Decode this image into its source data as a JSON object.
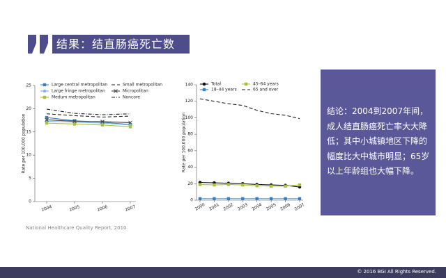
{
  "header": {
    "title": "结果：结直肠癌死亡数"
  },
  "chart_data": [
    {
      "type": "line",
      "categories": [
        "2004",
        "2005",
        "2006",
        "2007"
      ],
      "y_label": "Rate per 100,000 population",
      "ylim": [
        0,
        25
      ],
      "yticks": [
        0,
        5,
        10,
        15,
        20,
        25
      ],
      "series": [
        {
          "name": "Large central metropolitan",
          "color": "#3a7fc1",
          "marker": "square",
          "values": [
            18.1,
            17.4,
            17.1,
            16.6
          ]
        },
        {
          "name": "Large fringe metropolitan",
          "color": "#7fb8e0",
          "marker": "circle",
          "values": [
            17.3,
            17.1,
            16.9,
            16.5
          ]
        },
        {
          "name": "Medum metropolitan",
          "color": "#a8c23a",
          "marker": "square",
          "values": [
            16.9,
            16.7,
            16.5,
            16.1
          ]
        },
        {
          "name": "Small metropolitan",
          "color": "#222222",
          "dash": "dash",
          "values": [
            18.9,
            18.5,
            18.2,
            18.4
          ]
        },
        {
          "name": "Micropolitan",
          "color": "#444444",
          "marker": "cross",
          "values": [
            17.6,
            17.3,
            17.2,
            17.0
          ]
        },
        {
          "name": "Noncore",
          "color": "#222222",
          "dash": "dashdot",
          "values": [
            19.9,
            19.0,
            18.7,
            18.9
          ]
        }
      ]
    },
    {
      "type": "line",
      "categories": [
        "2000",
        "2001",
        "2002",
        "2003",
        "2004",
        "2005",
        "2006",
        "2007"
      ],
      "y_label": "Rate per 100,000 population",
      "ylim": [
        0,
        140
      ],
      "yticks": [
        0,
        20,
        40,
        60,
        80,
        100,
        120,
        140
      ],
      "series": [
        {
          "name": "Total",
          "color": "#111111",
          "marker": "circle",
          "values": [
            21.5,
            21,
            20.5,
            20,
            19,
            18.5,
            18,
            16
          ]
        },
        {
          "name": "18–44 years",
          "color": "#3a7fc1",
          "marker": "square",
          "values": [
            1.8,
            1.8,
            1.8,
            1.8,
            1.8,
            1.8,
            1.8,
            1.8
          ]
        },
        {
          "name": "45–64 years",
          "color": "#a8c23a",
          "marker": "square",
          "values": [
            19,
            18.5,
            19,
            18.5,
            17.5,
            17,
            17,
            18.5
          ]
        },
        {
          "name": "65 and over",
          "color": "#222222",
          "dash": "dash",
          "values": [
            123,
            120,
            117,
            115,
            109,
            105,
            103,
            99
          ]
        }
      ]
    }
  ],
  "conclusion": [
    "结论：2004到2007年间，",
    "成人结直肠癌死亡率大大降",
    "低；其中小城镇地区下降的",
    "幅度比大中城市明显；65岁",
    "以上年龄组也大幅下降。"
  ],
  "source": "National Healthcare Quality Report, 2010",
  "footer": "© 2016 BGI All Rights Reserved."
}
